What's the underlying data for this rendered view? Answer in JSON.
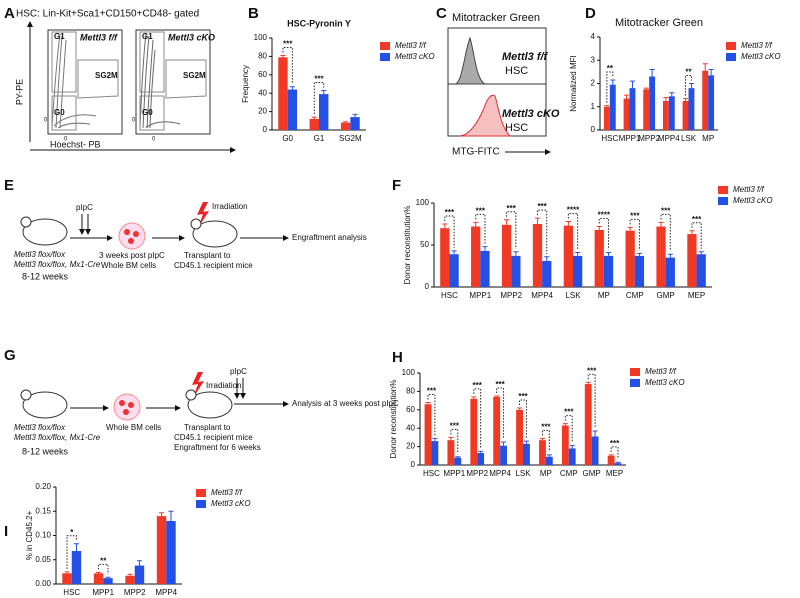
{
  "figure": {
    "panel_labels": [
      "A",
      "B",
      "C",
      "D",
      "E",
      "F",
      "G",
      "H",
      "I"
    ],
    "panel_a": {
      "title": "HSC: Lin-Kit+Sca1+CD150+CD48- gated",
      "y_label": "PY-PE",
      "x_label": "Hoechst- PB",
      "plots": [
        {
          "name": "Mettl3 f/f",
          "gates": [
            "G1",
            "SG2M",
            "G0"
          ]
        },
        {
          "name": "Mettl3 cKO",
          "gates": [
            "G1",
            "SG2M",
            "G0"
          ]
        }
      ],
      "axis_zeros": [
        "0",
        "0",
        "0",
        "0"
      ]
    },
    "panel_c": {
      "title": "Mitotracker Green",
      "x_label": "MTG-FITC",
      "curves": [
        {
          "name": "Mettl3 f/f",
          "population": "HSC"
        },
        {
          "name": "Mettl3 cKO",
          "population": "HSC"
        }
      ]
    },
    "panel_e": {
      "pipc": "pIpC",
      "irradiation": "Irradiation",
      "mouse_lines": [
        "Mettl3 flox/flox",
        "Mettl3 flox/flox, Mx1-Cre"
      ],
      "age": "8-12 weeks",
      "cells": [
        "3 weeks post pIpC",
        "Whole BM cells"
      ],
      "transplant": [
        "Transplant to",
        "CD45.1 recipient mice"
      ],
      "readout": "Engraftment analysis"
    },
    "panel_g": {
      "pipc": "pIpC",
      "irradiation": "Irradiation",
      "mouse_lines": [
        "Mettl3 flox/flox",
        "Mettl3 flox/flox, Mx1-Cre"
      ],
      "age": "8-12 weeks",
      "cells": "Whole BM cells",
      "transplant": [
        "Transplant to",
        "CD45.1 recipient mice",
        "Engraftment for 6 weeks"
      ],
      "readout": "Analysis at 3 weeks post pIpC"
    }
  },
  "chart_data": [
    {
      "type": "bar",
      "title": "HSC-Pyronin Y",
      "y_label": "Frequency",
      "categories": [
        "G0",
        "G1",
        "SG2M"
      ],
      "series": [
        {
          "name": "Mettl3 f/f",
          "color": "#f03a26",
          "values": [
            79,
            12,
            8
          ],
          "errors": [
            2,
            2,
            1
          ]
        },
        {
          "name": "Mettl3 cKO",
          "color": "#2450e6",
          "values": [
            44,
            39,
            14
          ],
          "errors": [
            3,
            4,
            3
          ]
        }
      ],
      "ylim": [
        0,
        100
      ],
      "yticks": [
        0,
        20,
        40,
        60,
        80,
        100
      ],
      "significance": [
        "***",
        "***",
        null
      ]
    },
    {
      "type": "bar",
      "title": "Mitotracker Green",
      "y_label": "Normalized MFI",
      "categories": [
        "HSC",
        "MPP1",
        "MPP2",
        "MPP4",
        "LSK",
        "MP"
      ],
      "series": [
        {
          "name": "Mettl3 f/f",
          "color": "#f03a26",
          "values": [
            1.0,
            1.35,
            1.75,
            1.25,
            1.25,
            2.55
          ],
          "errors": [
            0.05,
            0.15,
            0.05,
            0.15,
            0.1,
            0.3
          ]
        },
        {
          "name": "Mettl3 cKO",
          "color": "#2450e6",
          "values": [
            1.95,
            1.8,
            2.3,
            1.45,
            1.8,
            2.35
          ],
          "errors": [
            0.2,
            0.3,
            0.3,
            0.15,
            0.2,
            0.25
          ]
        }
      ],
      "ylim": [
        0,
        4
      ],
      "yticks": [
        0,
        1,
        2,
        3,
        4
      ],
      "significance": [
        "**",
        null,
        null,
        null,
        "**",
        null
      ]
    },
    {
      "type": "bar",
      "y_label": "Donor reconstitution%",
      "categories": [
        "HSC",
        "MPP1",
        "MPP2",
        "MPP4",
        "LSK",
        "MP",
        "CMP",
        "GMP",
        "MEP"
      ],
      "series": [
        {
          "name": "Mettl3 f/f",
          "color": "#f03a26",
          "values": [
            70,
            72,
            74,
            75,
            73,
            68,
            67,
            72,
            63
          ],
          "errors": [
            5,
            5,
            6,
            7,
            5,
            4,
            4,
            5,
            4
          ]
        },
        {
          "name": "Mettl3 cKO",
          "color": "#2450e6",
          "values": [
            39,
            43,
            37,
            31,
            37,
            37,
            37,
            35,
            39
          ],
          "errors": [
            4,
            5,
            5,
            5,
            4,
            4,
            3,
            4,
            3
          ]
        }
      ],
      "ylim": [
        0,
        100
      ],
      "yticks": [
        0,
        50,
        100
      ],
      "significance": [
        "***",
        "***",
        "***",
        "***",
        "****",
        "****",
        "***",
        "***",
        "***"
      ]
    },
    {
      "type": "bar",
      "y_label": "Donor reconstitution%",
      "categories": [
        "HSC",
        "MPP1",
        "MPP2",
        "MPP4",
        "LSK",
        "MP",
        "CMP",
        "GMP",
        "MEP"
      ],
      "series": [
        {
          "name": "Mettl3 f/f",
          "color": "#f03a26",
          "values": [
            66,
            27,
            72,
            74,
            60,
            27,
            43,
            88,
            10
          ],
          "errors": [
            2,
            3,
            2,
            1,
            2,
            2,
            2,
            2,
            1
          ]
        },
        {
          "name": "Mettl3 cKO",
          "color": "#2450e6",
          "values": [
            26,
            8,
            13,
            21,
            23,
            9,
            18,
            31,
            2
          ],
          "errors": [
            3,
            1,
            2,
            4,
            3,
            2,
            3,
            6,
            1
          ]
        }
      ],
      "ylim": [
        0,
        100
      ],
      "yticks": [
        0,
        20,
        40,
        60,
        80,
        100
      ],
      "significance": [
        "***",
        "***",
        "***",
        "***",
        "***",
        "***",
        "***",
        "***",
        "***"
      ]
    },
    {
      "type": "bar",
      "y_label": "% in CD45.2+",
      "categories": [
        "HSC",
        "MPP1",
        "MPP2",
        "MPP4"
      ],
      "series": [
        {
          "name": "Mettl3 f/f",
          "color": "#f03a26",
          "values": [
            0.022,
            0.022,
            0.017,
            0.14
          ],
          "errors": [
            0.003,
            0.002,
            0.003,
            0.007
          ]
        },
        {
          "name": "Mettl3 cKO",
          "color": "#2450e6",
          "values": [
            0.068,
            0.012,
            0.038,
            0.13
          ],
          "errors": [
            0.015,
            0.002,
            0.01,
            0.02
          ]
        }
      ],
      "ylim": [
        0,
        0.2
      ],
      "yticks": [
        {
          "value": 0,
          "label": "0.00"
        },
        {
          "value": 0.05,
          "label": "0.05"
        },
        {
          "value": 0.1,
          "label": "0.10"
        },
        {
          "value": 0.15,
          "label": "0.15"
        },
        {
          "value": 0.2,
          "label": "0.20"
        }
      ],
      "significance": [
        "*",
        "**",
        null,
        null
      ]
    }
  ]
}
